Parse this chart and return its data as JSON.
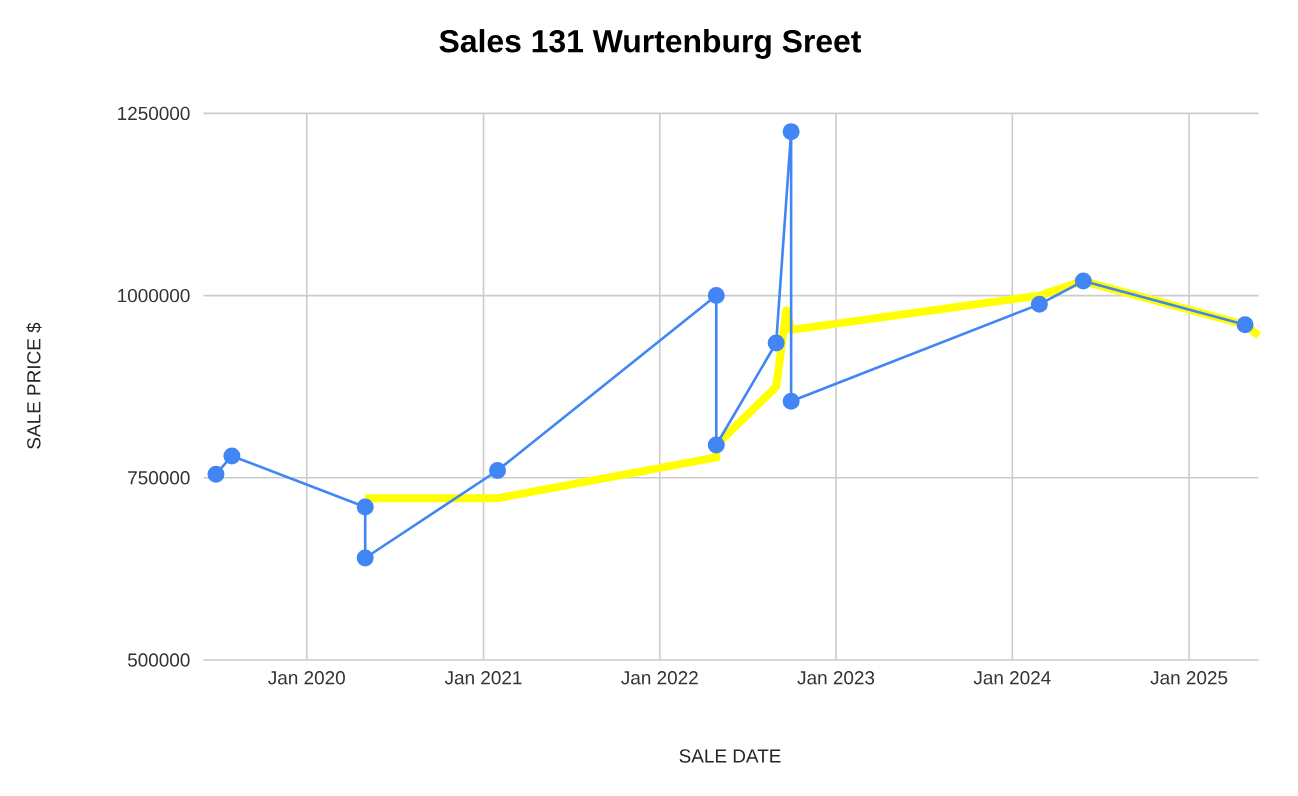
{
  "chart_data": {
    "type": "line",
    "title": "Sales 131 Wurtenburg Sreet",
    "xlabel": "SALE DATE",
    "ylabel": "SALE PRICE $",
    "xlim": [
      "2019-06-01",
      "2025-05-25"
    ],
    "xticks": [
      {
        "value": "2020-01-01",
        "label": "Jan 2020"
      },
      {
        "value": "2021-01-01",
        "label": "Jan 2021"
      },
      {
        "value": "2022-01-01",
        "label": "Jan 2022"
      },
      {
        "value": "2023-01-01",
        "label": "Jan 2023"
      },
      {
        "value": "2024-01-01",
        "label": "Jan 2024"
      },
      {
        "value": "2025-01-01",
        "label": "Jan 2025"
      }
    ],
    "ylim": [
      500000,
      1250000
    ],
    "yticks": [
      500000,
      750000,
      1000000,
      1250000
    ],
    "grid": true,
    "series": [
      {
        "color": "#4285f4",
        "marker": "circle",
        "x": [
          "2019-06-27",
          "2019-07-30",
          "2020-05-01",
          "2020-05-01",
          "2021-01-30",
          "2022-04-28",
          "2022-04-28",
          "2022-08-30",
          "2022-09-30",
          "2022-09-30",
          "2024-02-26",
          "2024-05-27",
          "2025-04-27"
        ],
        "values": [
          755000,
          780000,
          710000,
          640000,
          760000,
          1000000,
          795000,
          935000,
          1225000,
          855000,
          988000,
          1020000,
          960000
        ]
      },
      {
        "color": "#ffff00",
        "marker": "none",
        "x": [
          "2020-05-01",
          "2021-01-30",
          "2022-04-28",
          "2022-04-28",
          "2022-08-30",
          "2022-09-20",
          "2022-09-30",
          "2024-02-26",
          "2024-05-27",
          "2025-04-27",
          "2025-05-25"
        ],
        "values": [
          722000,
          722000,
          778000,
          795000,
          875000,
          980000,
          953000,
          1000000,
          1020000,
          960000,
          945000
        ]
      }
    ]
  }
}
